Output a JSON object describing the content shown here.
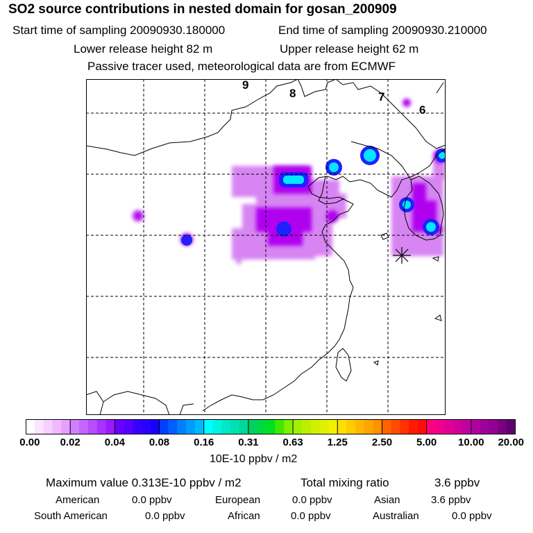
{
  "header": {
    "title": "SO2 source contributions in nested domain for gosan_200909",
    "start_time": "Start time of sampling 20090930.180000",
    "end_time": "End time of sampling 20090930.210000",
    "lower_height": "Lower release height   82 m",
    "upper_height": "Upper release height   62 m",
    "tracer_note": "Passive tracer used, meteorological data are from ECMWF"
  },
  "map": {
    "contour_labels": [
      "9",
      "8",
      "7",
      "6"
    ],
    "receptor_marker": "asterisk-receptor",
    "plume_colors": {
      "light_purple": "#d070f0",
      "purple": "#b000f0",
      "blue": "#2020ff",
      "cyan": "#00e8ff"
    }
  },
  "colorbar": {
    "tick_labels": [
      "0.00",
      "0.02",
      "0.04",
      "0.08",
      "0.16",
      "0.31",
      "0.63",
      "1.25",
      "2.50",
      "5.00",
      "10.00",
      "20.00"
    ],
    "bins": [
      [
        "#ffffff",
        "#fbe6ff",
        "#f6d0ff",
        "#efb8ff",
        "#e6a0ff"
      ],
      [
        "#d080ff",
        "#c466ff",
        "#b84cff",
        "#a833ff",
        "#9a1aff"
      ],
      [
        "#6a00ff",
        "#5800ff",
        "#3a00ff",
        "#2a00ff",
        "#1800ff"
      ],
      [
        "#0040ff",
        "#0060ff",
        "#0080ff",
        "#009cff",
        "#00b8ff"
      ],
      [
        "#00ffff",
        "#00f2e0",
        "#00e8c8",
        "#00e0b0",
        "#00d898"
      ],
      [
        "#00d060",
        "#00d840",
        "#00e020",
        "#40e800",
        "#80f000"
      ],
      [
        "#a0f000",
        "#b8f000",
        "#d0f000",
        "#e0f000",
        "#f0f000"
      ],
      [
        "#ffe000",
        "#ffcc00",
        "#ffb800",
        "#ffa400",
        "#ff9000"
      ],
      [
        "#ff6400",
        "#ff4c00",
        "#ff3400",
        "#ff1c00",
        "#ff0c0c"
      ],
      [
        "#ff0080",
        "#f0008c",
        "#e00094",
        "#d0009a",
        "#c000a0"
      ],
      [
        "#b000a0",
        "#a0009a",
        "#900090",
        "#780080",
        "#600070"
      ]
    ],
    "units": "10E-10 ppbv / m2"
  },
  "summary": {
    "max_value": "Maximum value  0.313E-10 ppbv / m2",
    "total_mixing": "Total mixing ratio",
    "total_mixing_value": "3.6 ppbv",
    "regions": [
      {
        "name": "American",
        "value": "0.0 ppbv"
      },
      {
        "name": "European",
        "value": "0.0 ppbv"
      },
      {
        "name": "Asian",
        "value": "3.6 ppbv"
      },
      {
        "name": "South American",
        "value": "0.0 ppbv"
      },
      {
        "name": "African",
        "value": "0.0 ppbv"
      },
      {
        "name": "Australian",
        "value": "0.0 ppbv"
      }
    ]
  }
}
